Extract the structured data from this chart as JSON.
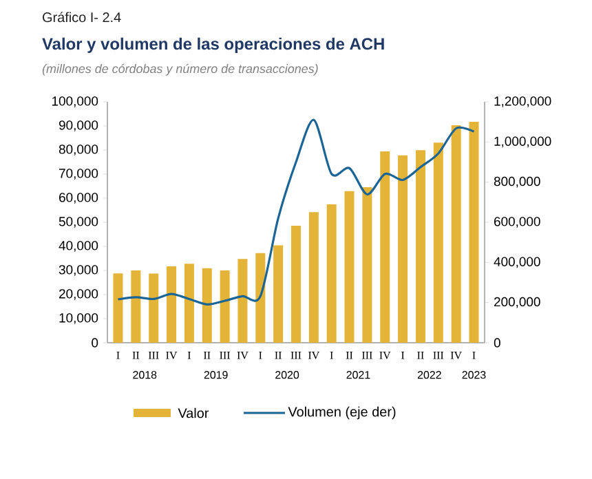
{
  "chart_data": {
    "type": "bar",
    "title": "Valor y volumen de las operaciones de ACH",
    "subtitle": "(millones de córdobas y número de transacciones)",
    "annotations": [
      "Gráfico I- 2.4",
      "2018",
      "2019",
      "2020",
      "2021",
      "2022",
      "2023"
    ],
    "categories": [
      "I",
      "II",
      "III",
      "IV",
      "I",
      "II",
      "III",
      "IV",
      "I",
      "II",
      "III",
      "IV",
      "I",
      "II",
      "III",
      "IV",
      "I",
      "II",
      "III",
      "IV",
      "I"
    ],
    "series": [
      {
        "name": "Valor",
        "color": "#e3b437",
        "values": [
          28800,
          30000,
          28700,
          31700,
          32800,
          30900,
          30000,
          34800,
          37200,
          40400,
          48600,
          54200,
          57400,
          62900,
          64600,
          79400,
          77800,
          79900,
          83100,
          90300,
          91700
        ]
      },
      {
        "name": "Volumen (eje der)",
        "type": "line",
        "axis": "y2",
        "color": "#1a6496",
        "values": [
          216000,
          227000,
          218000,
          243000,
          218000,
          191000,
          209000,
          232000,
          232000,
          620000,
          900000,
          1110000,
          841000,
          870000,
          739000,
          841000,
          811000,
          875000,
          943000,
          1068000,
          1052000
        ]
      }
    ],
    "ylim": [
      0,
      100000
    ],
    "yticks": [
      0,
      {
        "value": 10000,
        "label": "10,000"
      },
      {
        "value": 20000,
        "label": "20,000"
      },
      {
        "value": 30000,
        "label": "30,000"
      },
      {
        "value": 40000,
        "label": "40,000"
      },
      {
        "value": 50000,
        "label": "50,000"
      },
      {
        "value": 60000,
        "label": "60,000"
      },
      {
        "value": 70000,
        "label": "70,000"
      },
      {
        "value": 80000,
        "label": "80,000"
      },
      {
        "value": 90000,
        "label": "90,000"
      },
      {
        "value": 100000,
        "label": "100,000"
      }
    ],
    "y2lim": [
      0,
      1200000
    ],
    "y2ticks": [
      0,
      {
        "value": 200000,
        "label": "200,000"
      },
      {
        "value": 400000,
        "label": "400,000"
      },
      {
        "value": 600000,
        "label": "600,000"
      },
      {
        "value": 800000,
        "label": "800,000"
      },
      {
        "value": 1000000,
        "label": "1,000,000"
      },
      {
        "value": 1200000,
        "label": "1,200,000"
      }
    ],
    "legend": "bottom",
    "grid": false
  }
}
